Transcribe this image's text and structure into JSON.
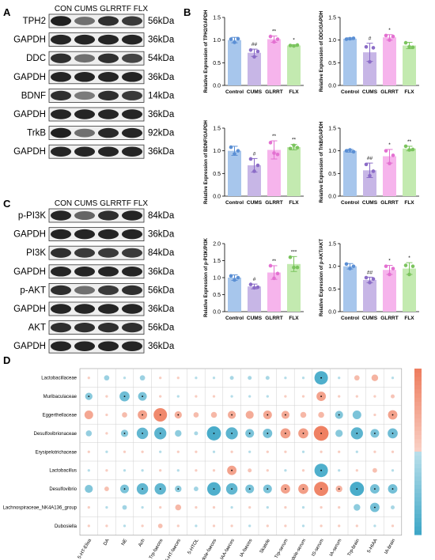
{
  "panels": {
    "A": "A",
    "B": "B",
    "C": "C",
    "D": "D"
  },
  "blot_groups": [
    "CON",
    "CUMS",
    "GLRRTF",
    "FLX"
  ],
  "blotA": [
    {
      "protein": "TPH2",
      "kda": "56kDa",
      "bands": [
        0.92,
        0.55,
        0.85,
        0.8
      ]
    },
    {
      "protein": "GAPDH",
      "kda": "36kDa",
      "bands": [
        0.9,
        0.9,
        0.9,
        0.9
      ]
    },
    {
      "protein": "DDC",
      "kda": "54kDa",
      "bands": [
        0.85,
        0.55,
        0.85,
        0.75
      ]
    },
    {
      "protein": "GAPDH",
      "kda": "36kDa",
      "bands": [
        0.9,
        0.9,
        0.9,
        0.9
      ]
    },
    {
      "protein": "BDNF",
      "kda": "14kDa",
      "bands": [
        0.85,
        0.5,
        0.85,
        0.8
      ]
    },
    {
      "protein": "GAPDH",
      "kda": "36kDa",
      "bands": [
        0.9,
        0.9,
        0.9,
        0.9
      ]
    },
    {
      "protein": "TrkB",
      "kda": "92kDa",
      "bands": [
        0.92,
        0.55,
        0.88,
        0.9
      ]
    },
    {
      "protein": "GAPDH",
      "kda": "36kDa",
      "bands": [
        0.9,
        0.9,
        0.9,
        0.9
      ]
    }
  ],
  "blotC": [
    {
      "protein": "p-PI3K",
      "kda": "84kDa",
      "bands": [
        0.9,
        0.6,
        0.85,
        0.9
      ]
    },
    {
      "protein": "GAPDH",
      "kda": "36kDa",
      "bands": [
        0.9,
        0.9,
        0.9,
        0.9
      ]
    },
    {
      "protein": "PI3K",
      "kda": "84kDa",
      "bands": [
        0.85,
        0.8,
        0.8,
        0.8
      ]
    },
    {
      "protein": "GAPDH",
      "kda": "36kDa",
      "bands": [
        0.9,
        0.9,
        0.9,
        0.9
      ]
    },
    {
      "protein": "p-AKT",
      "kda": "56kDa",
      "bands": [
        0.85,
        0.55,
        0.8,
        0.85
      ]
    },
    {
      "protein": "GAPDH",
      "kda": "36kDa",
      "bands": [
        0.9,
        0.9,
        0.9,
        0.9
      ]
    },
    {
      "protein": "AKT",
      "kda": "56kDa",
      "bands": [
        0.85,
        0.85,
        0.85,
        0.85
      ]
    },
    {
      "protein": "GAPDH",
      "kda": "36kDa",
      "bands": [
        0.9,
        0.9,
        0.9,
        0.9
      ]
    }
  ],
  "chart_data": [
    {
      "type": "bar",
      "categories": [
        "Control",
        "CUMS",
        "GLRRT",
        "FLX"
      ],
      "ylabel": "Relative Expression of TPH2/GAPDH",
      "ylim": [
        0,
        1.5
      ],
      "yticks": [
        0.0,
        0.5,
        1.0,
        1.5
      ],
      "values": [
        1.0,
        0.72,
        1.02,
        0.88
      ],
      "errors": [
        0.06,
        0.08,
        0.07,
        0.02
      ],
      "points": [
        [
          1.02,
          0.95,
          1.03
        ],
        [
          0.78,
          0.63,
          0.75
        ],
        [
          1.08,
          0.96,
          1.02
        ],
        [
          0.88,
          0.87,
          0.89
        ]
      ],
      "sig": [
        "",
        "##",
        "**",
        "*"
      ]
    },
    {
      "type": "bar",
      "categories": [
        "Control",
        "CUMS",
        "GLRRT",
        "FLX"
      ],
      "ylabel": "Relative Expression of DDC/GAPDH",
      "ylim": [
        0,
        1.5
      ],
      "yticks": [
        0.0,
        0.5,
        1.0,
        1.5
      ],
      "values": [
        1.03,
        0.73,
        1.06,
        0.88
      ],
      "errors": [
        0.02,
        0.2,
        0.06,
        0.07
      ],
      "points": [
        [
          1.02,
          1.03,
          1.04
        ],
        [
          0.85,
          0.52,
          0.83
        ],
        [
          1.1,
          1.0,
          1.08
        ],
        [
          0.94,
          0.85,
          0.84
        ]
      ],
      "sig": [
        "",
        "#",
        "*",
        ""
      ]
    },
    {
      "type": "bar",
      "categories": [
        "Control",
        "CUMS",
        "GLRRT",
        "FLX"
      ],
      "ylabel": "Relative Expression of BDNF/GAPDH",
      "ylim": [
        0,
        1.5
      ],
      "yticks": [
        0.0,
        0.5,
        1.0,
        1.5
      ],
      "values": [
        1.0,
        0.68,
        1.02,
        1.08
      ],
      "errors": [
        0.1,
        0.15,
        0.2,
        0.06
      ],
      "points": [
        [
          1.08,
          0.93,
          1.0
        ],
        [
          0.82,
          0.55,
          0.68
        ],
        [
          1.18,
          0.95,
          0.92
        ],
        [
          1.05,
          1.12,
          1.07
        ]
      ],
      "sig": [
        "",
        "#",
        "**",
        "**"
      ]
    },
    {
      "type": "bar",
      "categories": [
        "Control",
        "CUMS",
        "GLRRT",
        "FLX"
      ],
      "ylabel": "Relative Expression of TrkB/GAPDH",
      "ylim": [
        0,
        1.5
      ],
      "yticks": [
        0.0,
        0.5,
        1.0,
        1.5
      ],
      "values": [
        1.0,
        0.57,
        0.88,
        1.05
      ],
      "errors": [
        0.03,
        0.16,
        0.15,
        0.05
      ],
      "points": [
        [
          1.0,
          1.02,
          0.98
        ],
        [
          0.7,
          0.45,
          0.55
        ],
        [
          1.0,
          0.72,
          0.9
        ],
        [
          1.1,
          1.02,
          1.03
        ]
      ],
      "sig": [
        "",
        "##",
        "*",
        "**"
      ]
    },
    {
      "type": "bar",
      "categories": [
        "Control",
        "CUMS",
        "GLRRT",
        "FLX"
      ],
      "ylabel": "Relative Expression of p-PI3K/PI3K",
      "ylim": [
        0,
        2.0
      ],
      "yticks": [
        0.0,
        0.5,
        1.0,
        1.5,
        2.0
      ],
      "values": [
        1.0,
        0.74,
        1.15,
        1.4
      ],
      "errors": [
        0.08,
        0.07,
        0.2,
        0.22
      ],
      "points": [
        [
          1.05,
          0.93,
          1.0
        ],
        [
          0.8,
          0.7,
          0.72
        ],
        [
          1.35,
          0.98,
          1.12
        ],
        [
          1.6,
          1.3,
          1.3
        ]
      ],
      "sig": [
        "",
        "#",
        "**",
        "***"
      ]
    },
    {
      "type": "bar",
      "categories": [
        "Control",
        "CUMS",
        "GLRRT",
        "FLX"
      ],
      "ylabel": "Relative Expression of p-AKT/AKT",
      "ylim": [
        0,
        1.5
      ],
      "yticks": [
        0.0,
        0.5,
        1.0,
        1.5
      ],
      "values": [
        1.0,
        0.7,
        0.92,
        0.95
      ],
      "errors": [
        0.06,
        0.06,
        0.1,
        0.13
      ],
      "points": [
        [
          1.05,
          0.95,
          1.0
        ],
        [
          0.75,
          0.64,
          0.72
        ],
        [
          1.0,
          0.82,
          0.95
        ],
        [
          1.02,
          0.82,
          1.0
        ]
      ],
      "sig": [
        "",
        "##",
        "*",
        "*"
      ]
    },
    {
      "type": "heatmap",
      "rows": [
        "Lactobacillaceae",
        "Muribaculaceae",
        "Eggerthellaceae",
        "Desulfovibrionaceae",
        "Erysipelotrichaceae",
        "Lactobacillus",
        "Desulfovibrio",
        "Lachnospiraceae_NK4A136_group",
        "Dubosiella"
      ],
      "columns": [
        "5-HT-Elisa",
        "DA",
        "NE",
        "Ach",
        "Trp-faeces",
        "5-HT-faeces",
        "5-HTOL",
        "Indole-faeces",
        "IAA-faeces",
        "IA-faeces",
        "Skatole",
        "Trp-serum",
        "Indole-serum",
        "IS-serum",
        "IA-serum",
        "Trp-brain",
        "5-HIAA",
        "IA-brain"
      ],
      "values": [
        [
          0.05,
          -0.25,
          -0.05,
          -0.25,
          0.05,
          0.05,
          -0.05,
          -0.05,
          -0.15,
          -0.15,
          -0.15,
          -0.05,
          -0.05,
          -0.85,
          -0.05,
          0.25,
          0.35,
          -0.05
        ],
        [
          -0.4,
          0.05,
          -0.6,
          -0.5,
          0.05,
          -0.05,
          0.05,
          0.05,
          -0.05,
          -0.05,
          -0.05,
          0.05,
          0.05,
          0.55,
          0.05,
          0.05,
          0.05,
          0.15
        ],
        [
          0.5,
          0.05,
          0.25,
          0.55,
          0.85,
          0.4,
          0.25,
          0.3,
          0.45,
          0.45,
          0.5,
          0.45,
          0.3,
          0.3,
          -0.45,
          -0.5,
          0.05,
          0.55
        ],
        [
          -0.3,
          0.05,
          -0.4,
          -0.7,
          -0.75,
          -0.35,
          -0.15,
          -0.9,
          -0.75,
          -0.5,
          -0.55,
          0.6,
          0.6,
          0.95,
          -0.4,
          -0.75,
          -0.5,
          -0.6
        ],
        [
          0.05,
          -0.05,
          0.05,
          0.05,
          -0.05,
          0.05,
          0.05,
          -0.05,
          0.05,
          -0.05,
          0.05,
          0.05,
          -0.05,
          0.05,
          0.05,
          -0.05,
          0.05,
          0.05
        ],
        [
          -0.05,
          0.05,
          -0.05,
          -0.05,
          0.05,
          -0.05,
          0.05,
          0.05,
          0.55,
          0.15,
          0.05,
          -0.05,
          0.05,
          -0.85,
          -0.05,
          0.05,
          0.2,
          -0.05
        ],
        [
          -0.45,
          0.2,
          -0.5,
          -0.7,
          -0.7,
          -0.35,
          -0.2,
          -0.85,
          -0.7,
          -0.5,
          -0.5,
          0.55,
          0.6,
          0.9,
          0.35,
          -0.9,
          -0.55,
          -0.55
        ],
        [
          0.05,
          -0.05,
          -0.2,
          -0.05,
          0.05,
          0.3,
          0.05,
          0.05,
          -0.05,
          0.05,
          -0.05,
          0.05,
          -0.05,
          0.05,
          0.05,
          -0.35,
          -0.55,
          -0.15
        ],
        [
          0.05,
          0.05,
          -0.05,
          0.05,
          0.2,
          0.05,
          -0.05,
          0.05,
          0.05,
          -0.05,
          0.05,
          0.05,
          -0.05,
          0.05,
          0.05,
          0.05,
          -0.05,
          0.05
        ]
      ],
      "significant": [
        [
          0,
          0,
          0,
          0,
          0,
          0,
          0,
          0,
          0,
          0,
          0,
          0,
          0,
          1,
          0,
          0,
          0,
          0
        ],
        [
          1,
          0,
          1,
          1,
          0,
          0,
          0,
          0,
          0,
          0,
          0,
          0,
          0,
          1,
          0,
          0,
          0,
          0
        ],
        [
          0,
          0,
          0,
          1,
          1,
          1,
          0,
          0,
          1,
          0,
          1,
          1,
          0,
          0,
          1,
          0,
          0,
          1
        ],
        [
          0,
          0,
          1,
          1,
          1,
          0,
          0,
          1,
          1,
          1,
          1,
          1,
          1,
          1,
          0,
          1,
          1,
          1
        ],
        [
          0,
          0,
          0,
          0,
          0,
          0,
          0,
          0,
          0,
          0,
          0,
          0,
          0,
          0,
          0,
          0,
          0,
          0
        ],
        [
          0,
          0,
          0,
          0,
          0,
          0,
          0,
          0,
          1,
          0,
          0,
          0,
          0,
          1,
          0,
          0,
          0,
          0
        ],
        [
          0,
          0,
          1,
          1,
          1,
          1,
          0,
          1,
          1,
          1,
          1,
          1,
          1,
          1,
          1,
          1,
          1,
          1
        ],
        [
          0,
          0,
          0,
          0,
          0,
          0,
          0,
          0,
          0,
          0,
          0,
          0,
          0,
          0,
          0,
          0,
          1,
          0
        ],
        [
          0,
          0,
          0,
          0,
          0,
          0,
          0,
          0,
          0,
          0,
          0,
          0,
          0,
          0,
          0,
          0,
          0,
          0
        ]
      ],
      "colorbar": "right",
      "scale": [
        -1,
        1
      ]
    }
  ],
  "colors": {
    "control": "#a7c6ec",
    "cums": "#c7b6e6",
    "glrrt": "#f6b4ec",
    "flx": "#c3eab0",
    "control_dot": "#5b8fd4",
    "cums_dot": "#8b6cc7",
    "glrrt_dot": "#e371d1",
    "flx_dot": "#7bc45e",
    "positive": "#ee7c5d",
    "negative": "#3ca6c6"
  }
}
